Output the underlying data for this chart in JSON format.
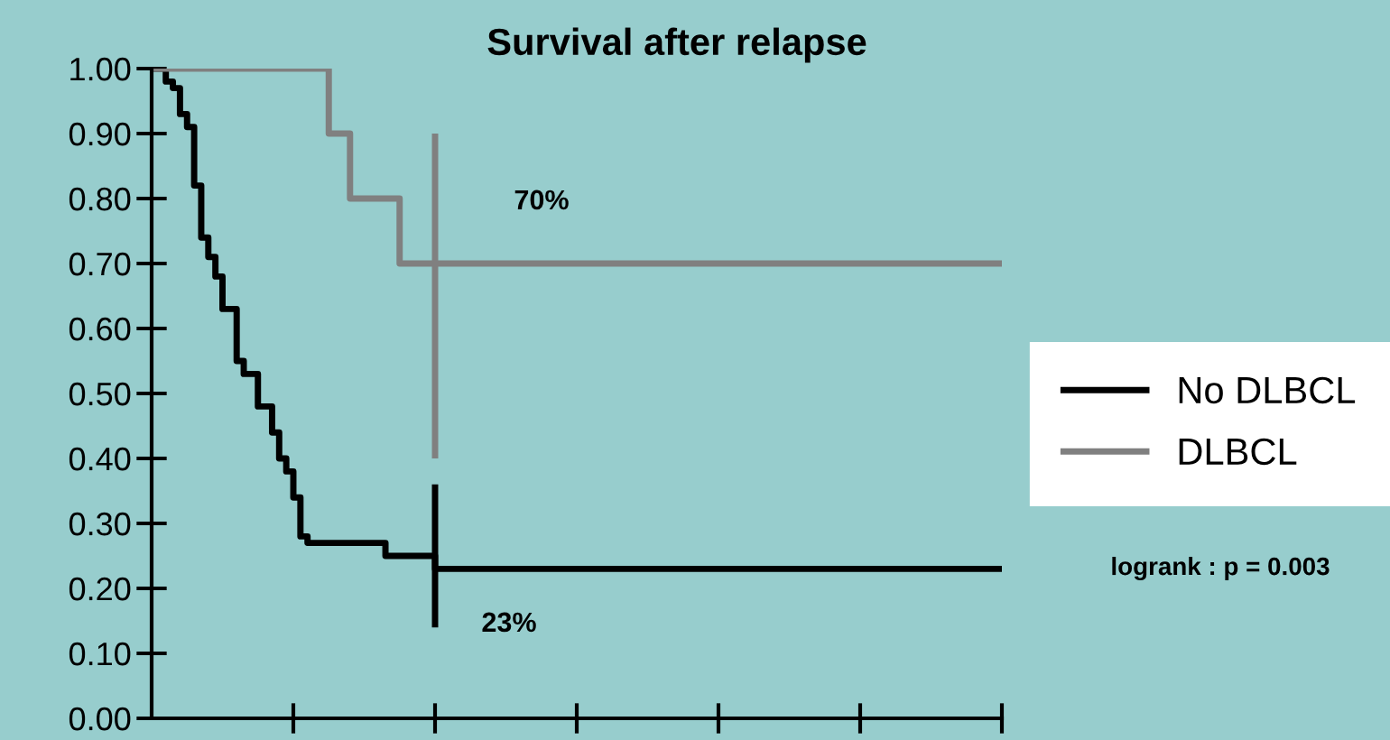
{
  "chart_data": {
    "type": "step",
    "title": "Survival after relapse",
    "ylim": [
      0,
      1
    ],
    "categories": [
      null,
      null,
      null,
      null,
      null,
      null,
      null,
      null,
      null,
      null,
      null,
      null,
      null,
      null,
      null,
      null,
      null,
      null,
      null,
      null,
      null,
      null,
      null,
      null,
      null,
      null,
      null,
      null,
      null,
      null,
      null,
      null,
      null,
      null,
      null,
      null,
      null,
      null,
      null,
      null,
      null,
      null,
      null,
      null,
      null,
      null,
      null,
      null,
      null,
      null,
      null,
      null,
      null,
      null,
      null,
      null,
      null,
      null,
      null,
      null,
      null,
      null,
      null,
      null,
      null,
      null,
      null,
      null,
      null,
      null,
      null,
      null,
      null,
      null,
      null,
      null,
      null,
      null,
      null,
      null,
      null,
      null,
      null,
      null,
      null,
      null,
      null,
      null,
      null,
      null,
      null,
      null,
      null,
      null,
      null,
      null,
      null,
      null,
      null,
      null,
      null,
      null,
      null,
      null,
      null,
      null,
      null,
      null,
      null,
      null,
      null,
      null,
      null,
      null,
      null,
      null,
      null,
      null,
      null,
      null,
      null
    ],
    "yticks": [
      {
        "value": 0,
        "label": "0.00"
      },
      {
        "value": 0.1,
        "label": "0.10"
      },
      {
        "value": 0.2,
        "label": "0.20"
      },
      {
        "value": 0.3,
        "label": "0.30"
      },
      {
        "value": 0.4,
        "label": "0.40"
      },
      {
        "value": 0.5,
        "label": "0.50"
      },
      {
        "value": 0.6,
        "label": "0.60"
      },
      {
        "value": 0.7,
        "label": "0.70"
      },
      {
        "value": 0.8,
        "label": "0.80"
      },
      {
        "value": 0.9,
        "label": "0.90"
      },
      {
        "value": 1,
        "label": "1.00"
      }
    ],
    "legend": "right",
    "line_style": "solid",
    "series": [
      {
        "name": "No DLBCL",
        "color": "#000000",
        "values": [
          1.0,
          1.0,
          0.98,
          0.97,
          0.93,
          0.91,
          0.82,
          0.74,
          0.71,
          0.68,
          0.63,
          0.63,
          0.55,
          0.53,
          0.53,
          0.48,
          0.48,
          0.44,
          0.4,
          0.38,
          0.34,
          0.28,
          0.27,
          0.27,
          0.27,
          0.27,
          0.27,
          0.27,
          0.27,
          0.27,
          0.27,
          0.27,
          0.27,
          0.25,
          0.25,
          0.25,
          0.25,
          0.25,
          0.25,
          0.25,
          0.23,
          0.23,
          0.23,
          0.23,
          0.23,
          0.23,
          0.23,
          0.23,
          0.23,
          0.23,
          0.23,
          0.23,
          0.23,
          0.23,
          0.23,
          0.23,
          0.23,
          0.23,
          0.23,
          0.23,
          0.23,
          0.23,
          0.23,
          0.23,
          0.23,
          0.23,
          0.23,
          0.23,
          0.23,
          0.23,
          0.23,
          0.23,
          0.23,
          0.23,
          0.23,
          0.23,
          0.23,
          0.23,
          0.23,
          0.23,
          0.23,
          0.23,
          0.23,
          0.23,
          0.23,
          0.23,
          0.23,
          0.23,
          0.23,
          0.23,
          0.23,
          0.23,
          0.23,
          0.23,
          0.23,
          0.23,
          0.23,
          0.23,
          0.23,
          0.23,
          0.23,
          0.23,
          0.23,
          0.23,
          0.23,
          0.23,
          0.23,
          0.23,
          0.23,
          0.23,
          0.23,
          0.23,
          0.23,
          0.23,
          0.23,
          0.23,
          0.23,
          0.23,
          0.23,
          0.23,
          0.23
        ],
        "errors": [
          null,
          null,
          null,
          null,
          null,
          null,
          null,
          null,
          null,
          null,
          null,
          null,
          null,
          null,
          null,
          null,
          null,
          null,
          null,
          null,
          null,
          null,
          null,
          null,
          null,
          null,
          null,
          null,
          null,
          null,
          null,
          null,
          null,
          null,
          null,
          null,
          null,
          null,
          null,
          null,
          [
            0.14,
            0.36
          ],
          null,
          null,
          null,
          null,
          null,
          null,
          null,
          null,
          null,
          null,
          null,
          null,
          null,
          null,
          null,
          null,
          null,
          null,
          null,
          null,
          null,
          null,
          null,
          null,
          null,
          null,
          null,
          null,
          null,
          null,
          null,
          null,
          null,
          null,
          null,
          null,
          null,
          null,
          null,
          null,
          null,
          null,
          null,
          null,
          null,
          null,
          null,
          null,
          null,
          null,
          null,
          null,
          null,
          null,
          null,
          null,
          null,
          null,
          null,
          null,
          null,
          null,
          null,
          null,
          null,
          null,
          null,
          null,
          null,
          null,
          null,
          null,
          null,
          null,
          null,
          null,
          null,
          null,
          null,
          null
        ]
      },
      {
        "name": "DLBCL",
        "color": "#808080",
        "values": [
          1.0,
          1.0,
          1.0,
          1.0,
          1.0,
          1.0,
          1.0,
          1.0,
          1.0,
          1.0,
          1.0,
          1.0,
          1.0,
          1.0,
          1.0,
          1.0,
          1.0,
          1.0,
          1.0,
          1.0,
          1.0,
          1.0,
          1.0,
          1.0,
          1.0,
          0.9,
          0.9,
          0.9,
          0.8,
          0.8,
          0.8,
          0.8,
          0.8,
          0.8,
          0.8,
          0.7,
          0.7,
          0.7,
          0.7,
          0.7,
          0.7,
          0.7,
          0.7,
          0.7,
          0.7,
          0.7,
          0.7,
          0.7,
          0.7,
          0.7,
          0.7,
          0.7,
          0.7,
          0.7,
          0.7,
          0.7,
          0.7,
          0.7,
          0.7,
          0.7,
          0.7,
          0.7,
          0.7,
          0.7,
          0.7,
          0.7,
          0.7,
          0.7,
          0.7,
          0.7,
          0.7,
          0.7,
          0.7,
          0.7,
          0.7,
          0.7,
          0.7,
          0.7,
          0.7,
          0.7,
          0.7,
          0.7,
          0.7,
          0.7,
          0.7,
          0.7,
          0.7,
          0.7,
          0.7,
          0.7,
          0.7,
          0.7,
          0.7,
          0.7,
          0.7,
          0.7,
          0.7,
          0.7,
          0.7,
          0.7,
          0.7,
          0.7,
          0.7,
          0.7,
          0.7,
          0.7,
          0.7,
          0.7,
          0.7,
          0.7,
          0.7,
          0.7,
          0.7,
          0.7,
          0.7,
          0.7,
          0.7,
          0.7,
          0.7,
          0.7,
          0.7
        ],
        "errors": [
          null,
          null,
          null,
          null,
          null,
          null,
          null,
          null,
          null,
          null,
          null,
          null,
          null,
          null,
          null,
          null,
          null,
          null,
          null,
          null,
          null,
          null,
          null,
          null,
          null,
          null,
          null,
          null,
          null,
          null,
          null,
          null,
          null,
          null,
          null,
          null,
          null,
          null,
          null,
          null,
          [
            0.4,
            0.9
          ],
          null,
          null,
          null,
          null,
          null,
          null,
          null,
          null,
          null,
          null,
          null,
          null,
          null,
          null,
          null,
          null,
          null,
          null,
          null,
          null,
          null,
          null,
          null,
          null,
          null,
          null,
          null,
          null,
          null,
          null,
          null,
          null,
          null,
          null,
          null,
          null,
          null,
          null,
          null,
          null,
          null,
          null,
          null,
          null,
          null,
          null,
          null,
          null,
          null,
          null,
          null,
          null,
          null,
          null,
          null,
          null,
          null,
          null,
          null,
          null,
          null,
          null,
          null,
          null,
          null,
          null,
          null,
          null,
          null,
          null,
          null,
          null,
          null,
          null,
          null,
          null,
          null,
          null,
          null,
          null
        ]
      }
    ],
    "annotations": [
      "70%",
      "23%",
      "logrank : p = 0.003"
    ]
  }
}
